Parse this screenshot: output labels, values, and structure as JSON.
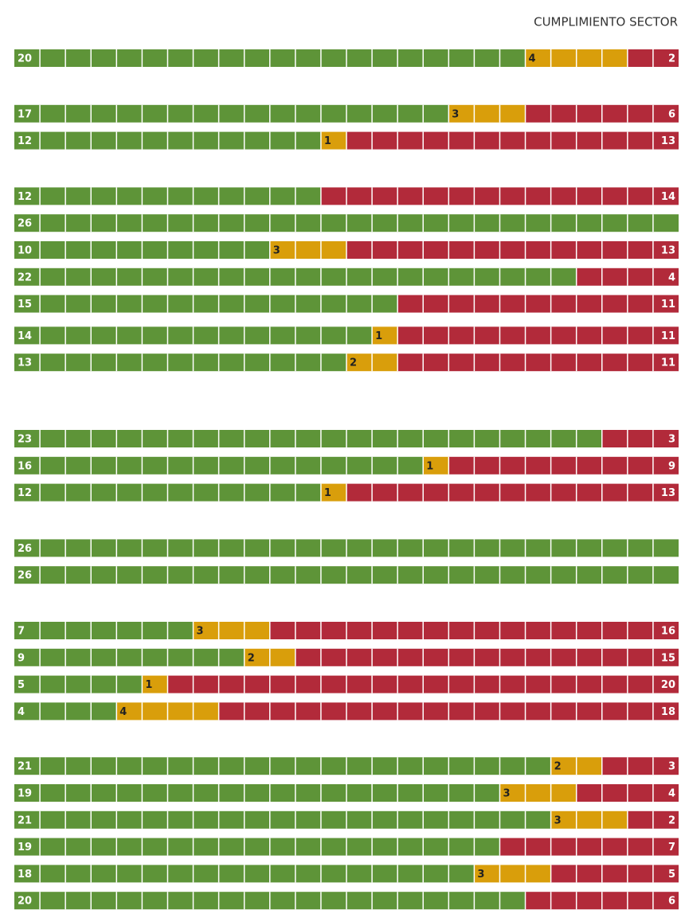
{
  "chart_data": {
    "type": "unit-stack",
    "title": "CUMPLIMIENTO SECTOR",
    "series": [
      {
        "name": "green",
        "color": "#5e9438"
      },
      {
        "name": "yellow",
        "color": "#d99e0b"
      },
      {
        "name": "red",
        "color": "#b22a3a"
      }
    ],
    "groups": [
      {
        "rows": [
          [
            20,
            4,
            2
          ]
        ]
      },
      {
        "rows": [
          [
            17,
            3,
            6
          ],
          [
            12,
            1,
            13
          ]
        ]
      },
      {
        "rows": [
          [
            12,
            0,
            14
          ],
          [
            26,
            0,
            0
          ],
          [
            10,
            3,
            13
          ],
          [
            22,
            0,
            4
          ],
          [
            15,
            0,
            11
          ]
        ]
      },
      {
        "rows": [
          [
            14,
            1,
            11
          ],
          [
            13,
            2,
            11
          ]
        ]
      },
      {
        "rows": [
          [
            23,
            0,
            3
          ],
          [
            16,
            1,
            9
          ],
          [
            12,
            1,
            13
          ]
        ]
      },
      {
        "rows": [
          [
            26,
            0,
            0
          ],
          [
            26,
            0,
            0
          ]
        ]
      },
      {
        "rows": [
          [
            7,
            3,
            16
          ],
          [
            9,
            2,
            15
          ],
          [
            5,
            1,
            20
          ],
          [
            4,
            4,
            18
          ]
        ]
      },
      {
        "rows": [
          [
            21,
            2,
            3
          ],
          [
            19,
            3,
            4
          ],
          [
            21,
            3,
            2
          ],
          [
            19,
            0,
            7
          ],
          [
            18,
            3,
            5
          ],
          [
            20,
            0,
            6
          ]
        ]
      }
    ]
  }
}
